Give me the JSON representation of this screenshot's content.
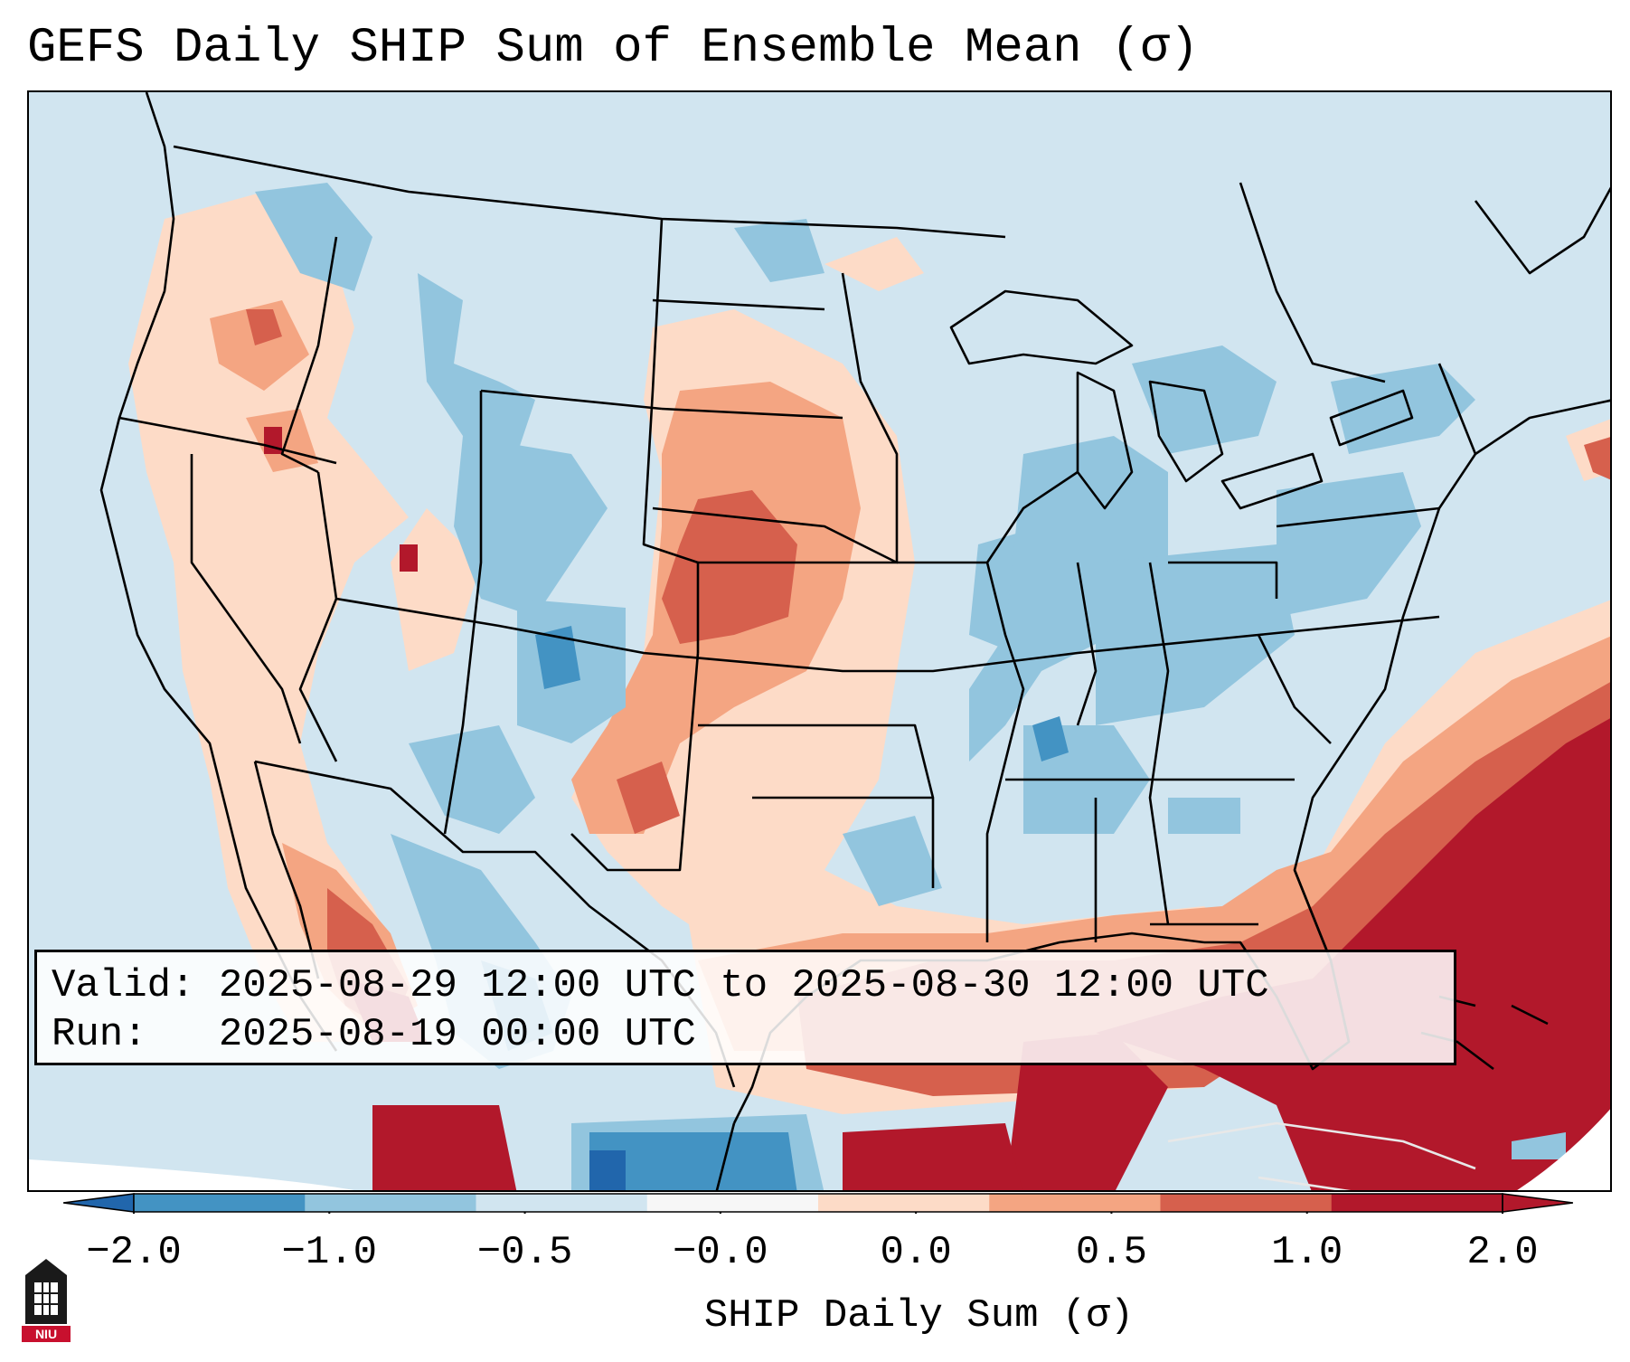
{
  "title": "GEFS Daily SHIP Sum of Ensemble Mean (σ)",
  "info": {
    "valid_label": "Valid:",
    "valid_value": "2025-08-29 12:00 UTC to 2025-08-30 12:00 UTC",
    "run_label": "Run:",
    "run_value": "2025-08-19 00:00 UTC"
  },
  "colorbar": {
    "label": "SHIP Daily Sum (σ)",
    "ticks": [
      "−2.0",
      "−1.0",
      "−0.5",
      "−0.0",
      "0.0",
      "0.5",
      "1.0",
      "2.0"
    ],
    "colors": [
      "#4393c3",
      "#92c5de",
      "#d1e5f0",
      "#f7f7f7",
      "#fddbc7",
      "#f4a582",
      "#d6604d",
      "#b2182b"
    ],
    "under_color": "#2166ac",
    "over_color": "#b2182b"
  },
  "logo": {
    "text": "NIU"
  }
}
